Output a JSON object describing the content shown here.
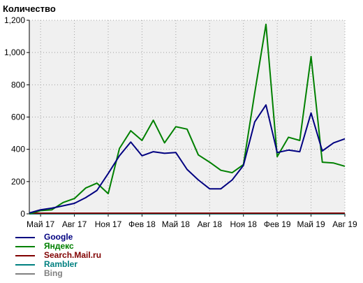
{
  "chart_data": {
    "type": "line",
    "title": "Количество",
    "xlabel": "",
    "ylabel": "",
    "ylim": [
      0,
      1200
    ],
    "yticks": [
      "0",
      "200",
      "400",
      "600",
      "800",
      "1,000",
      "1,200"
    ],
    "ytick_values": [
      0,
      200,
      400,
      600,
      800,
      1000,
      1200
    ],
    "x_tick_labels": [
      "Май 17",
      "Авг 17",
      "Ноя 17",
      "Фев 18",
      "Май 18",
      "Авг 18",
      "Ноя 18",
      "Фев 19",
      "Май 19",
      "Авг 19"
    ],
    "x_tick_index": [
      1,
      4,
      7,
      10,
      13,
      16,
      19,
      22,
      25,
      28
    ],
    "x": [
      "Апр 17",
      "Май 17",
      "Июн 17",
      "Июл 17",
      "Авг 17",
      "Сен 17",
      "Окт 17",
      "Ноя 17",
      "Дек 17",
      "Янв 18",
      "Фев 18",
      "Мар 18",
      "Апр 18",
      "Май 18",
      "Июн 18",
      "Июл 18",
      "Авг 18",
      "Сен 18",
      "Окт 18",
      "Ноя 18",
      "Дек 18",
      "Янв 19",
      "Фев 19",
      "Мар 19",
      "Апр 19",
      "Май 19",
      "Июн 19",
      "Июл 19",
      "Авг 19"
    ],
    "series": [
      {
        "name": "Google",
        "color": "#000080",
        "values": [
          5,
          25,
          35,
          50,
          65,
          100,
          145,
          250,
          360,
          445,
          360,
          385,
          375,
          380,
          275,
          210,
          155,
          155,
          210,
          300,
          570,
          675,
          380,
          395,
          385,
          625,
          390,
          440,
          465
        ]
      },
      {
        "name": "Яндекс",
        "color": "#008000",
        "values": [
          0,
          20,
          25,
          70,
          95,
          160,
          190,
          125,
          405,
          515,
          455,
          580,
          440,
          540,
          525,
          365,
          320,
          270,
          255,
          305,
          750,
          1175,
          355,
          475,
          455,
          975,
          320,
          315,
          295
        ]
      },
      {
        "name": "Search.Mail.ru",
        "color": "#800000",
        "values": [
          4,
          4,
          4,
          4,
          4,
          4,
          4,
          4,
          4,
          4,
          4,
          4,
          4,
          4,
          4,
          4,
          4,
          4,
          4,
          4,
          4,
          4,
          4,
          4,
          4,
          4,
          4,
          4,
          4
        ]
      },
      {
        "name": "Rambler",
        "color": "#008080",
        "values": [
          0,
          0,
          0,
          0,
          0,
          0,
          0,
          0,
          0,
          0,
          0,
          0,
          0,
          0,
          0,
          0,
          0,
          0,
          0,
          0,
          0,
          0,
          0,
          0,
          0,
          0,
          0,
          0,
          0
        ]
      },
      {
        "name": "Bing",
        "color": "#808080",
        "values": [
          0,
          0,
          0,
          0,
          0,
          0,
          0,
          0,
          0,
          0,
          0,
          0,
          0,
          0,
          0,
          0,
          0,
          0,
          0,
          0,
          0,
          0,
          0,
          0,
          0,
          0,
          0,
          0,
          0
        ]
      }
    ],
    "grid": true,
    "legend_position": "bottom-left",
    "plot_background": "#f0f0f0"
  }
}
